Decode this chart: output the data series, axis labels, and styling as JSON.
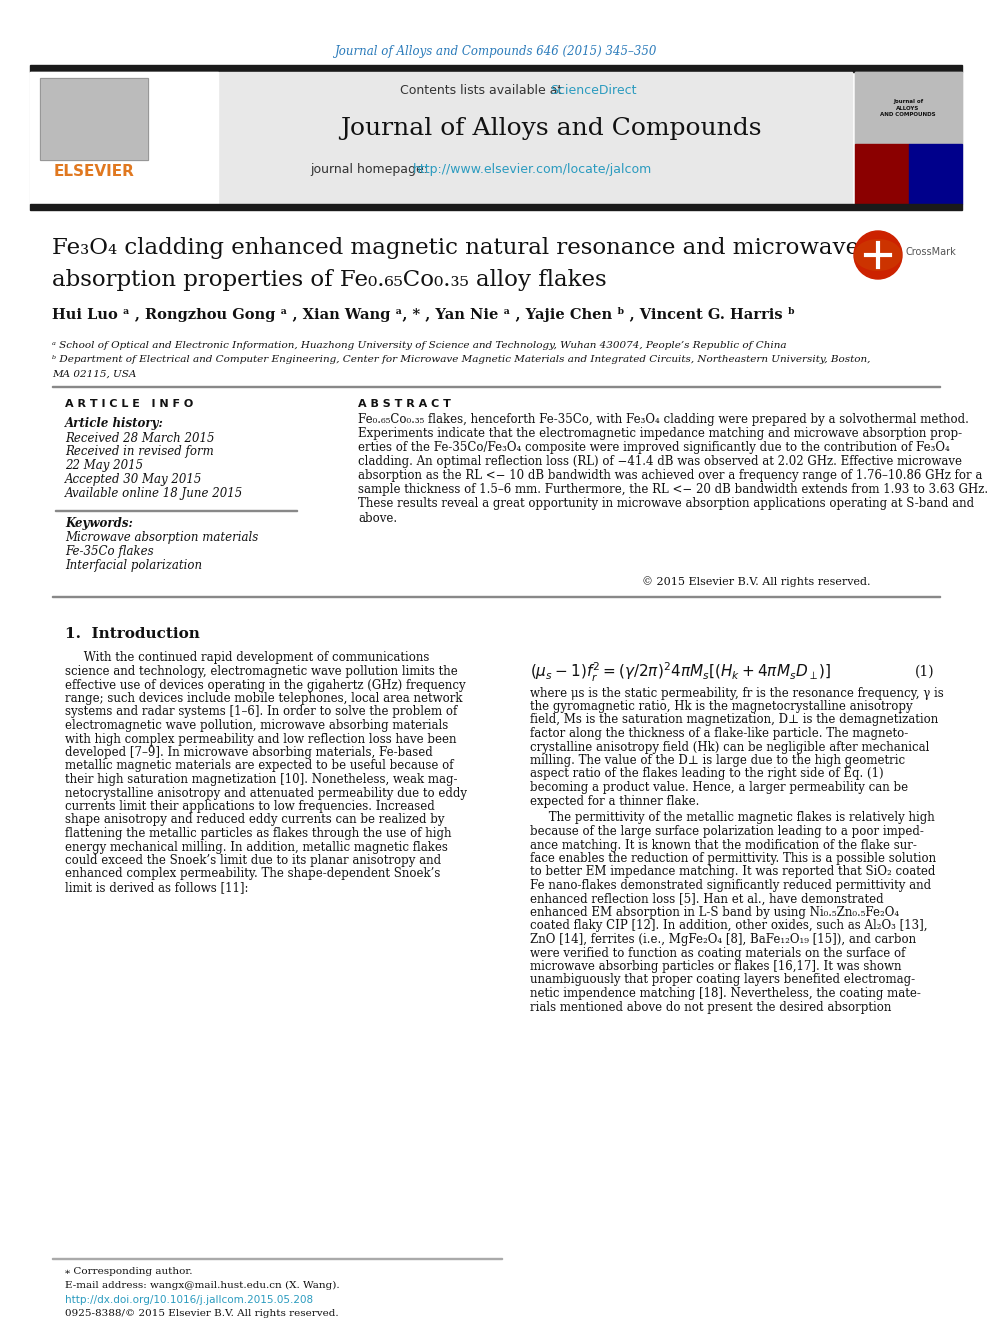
{
  "journal_citation": "Journal of Alloys and Compounds 646 (2015) 345–350",
  "journal_name": "Journal of Alloys and Compounds",
  "contents_text": "Contents lists available at ",
  "sciencedirect_text": "ScienceDirect",
  "homepage_text": "journal homepage: ",
  "homepage_url": "http://www.elsevier.com/locate/jalcom",
  "title_line1": "Fe₃O₄ cladding enhanced magnetic natural resonance and microwave",
  "title_line2": "absorption properties of Fe₀.₆₅Co₀.₃₅ alloy flakes",
  "authors": "Hui Luo ᵃ , Rongzhou Gong ᵃ , Xian Wang ᵃ, * , Yan Nie ᵃ , Yajie Chen ᵇ , Vincent G. Harris ᵇ",
  "affil_a": "ᵃ School of Optical and Electronic Information, Huazhong University of Science and Technology, Wuhan 430074, People’s Republic of China",
  "affil_b": "ᵇ Department of Electrical and Computer Engineering, Center for Microwave Magnetic Materials and Integrated Circuits, Northeastern University, Boston,",
  "affil_b2": "MA 02115, USA",
  "article_info_header": "A R T I C L E   I N F O",
  "abstract_header": "A B S T R A C T",
  "article_history_label": "Article history:",
  "received_1": "Received 28 March 2015",
  "received_2": "Received in revised form",
  "received_2b": "22 May 2015",
  "accepted": "Accepted 30 May 2015",
  "available": "Available online 18 June 2015",
  "keywords_label": "Keywords:",
  "keyword1": "Microwave absorption materials",
  "keyword2": "Fe-35Co flakes",
  "keyword3": "Interfacial polarization",
  "copyright": "© 2015 Elsevier B.V. All rights reserved.",
  "section1_header": "1.  Introduction",
  "eq_number": "(1)",
  "footer_note": "⁎ Corresponding author.",
  "footer_email": "E-mail address: wangx@mail.hust.edu.cn (X. Wang).",
  "footer_doi": "http://dx.doi.org/10.1016/j.jallcom.2015.05.208",
  "footer_issn": "0925-8388/© 2015 Elsevier B.V. All rights reserved.",
  "bg_color": "#ffffff",
  "header_bg": "#e8e8e8",
  "dark_bar_color": "#1a1a1a",
  "orange_color": "#e07820",
  "citation_color": "#2b7bba",
  "link_color": "#2b9bbf"
}
